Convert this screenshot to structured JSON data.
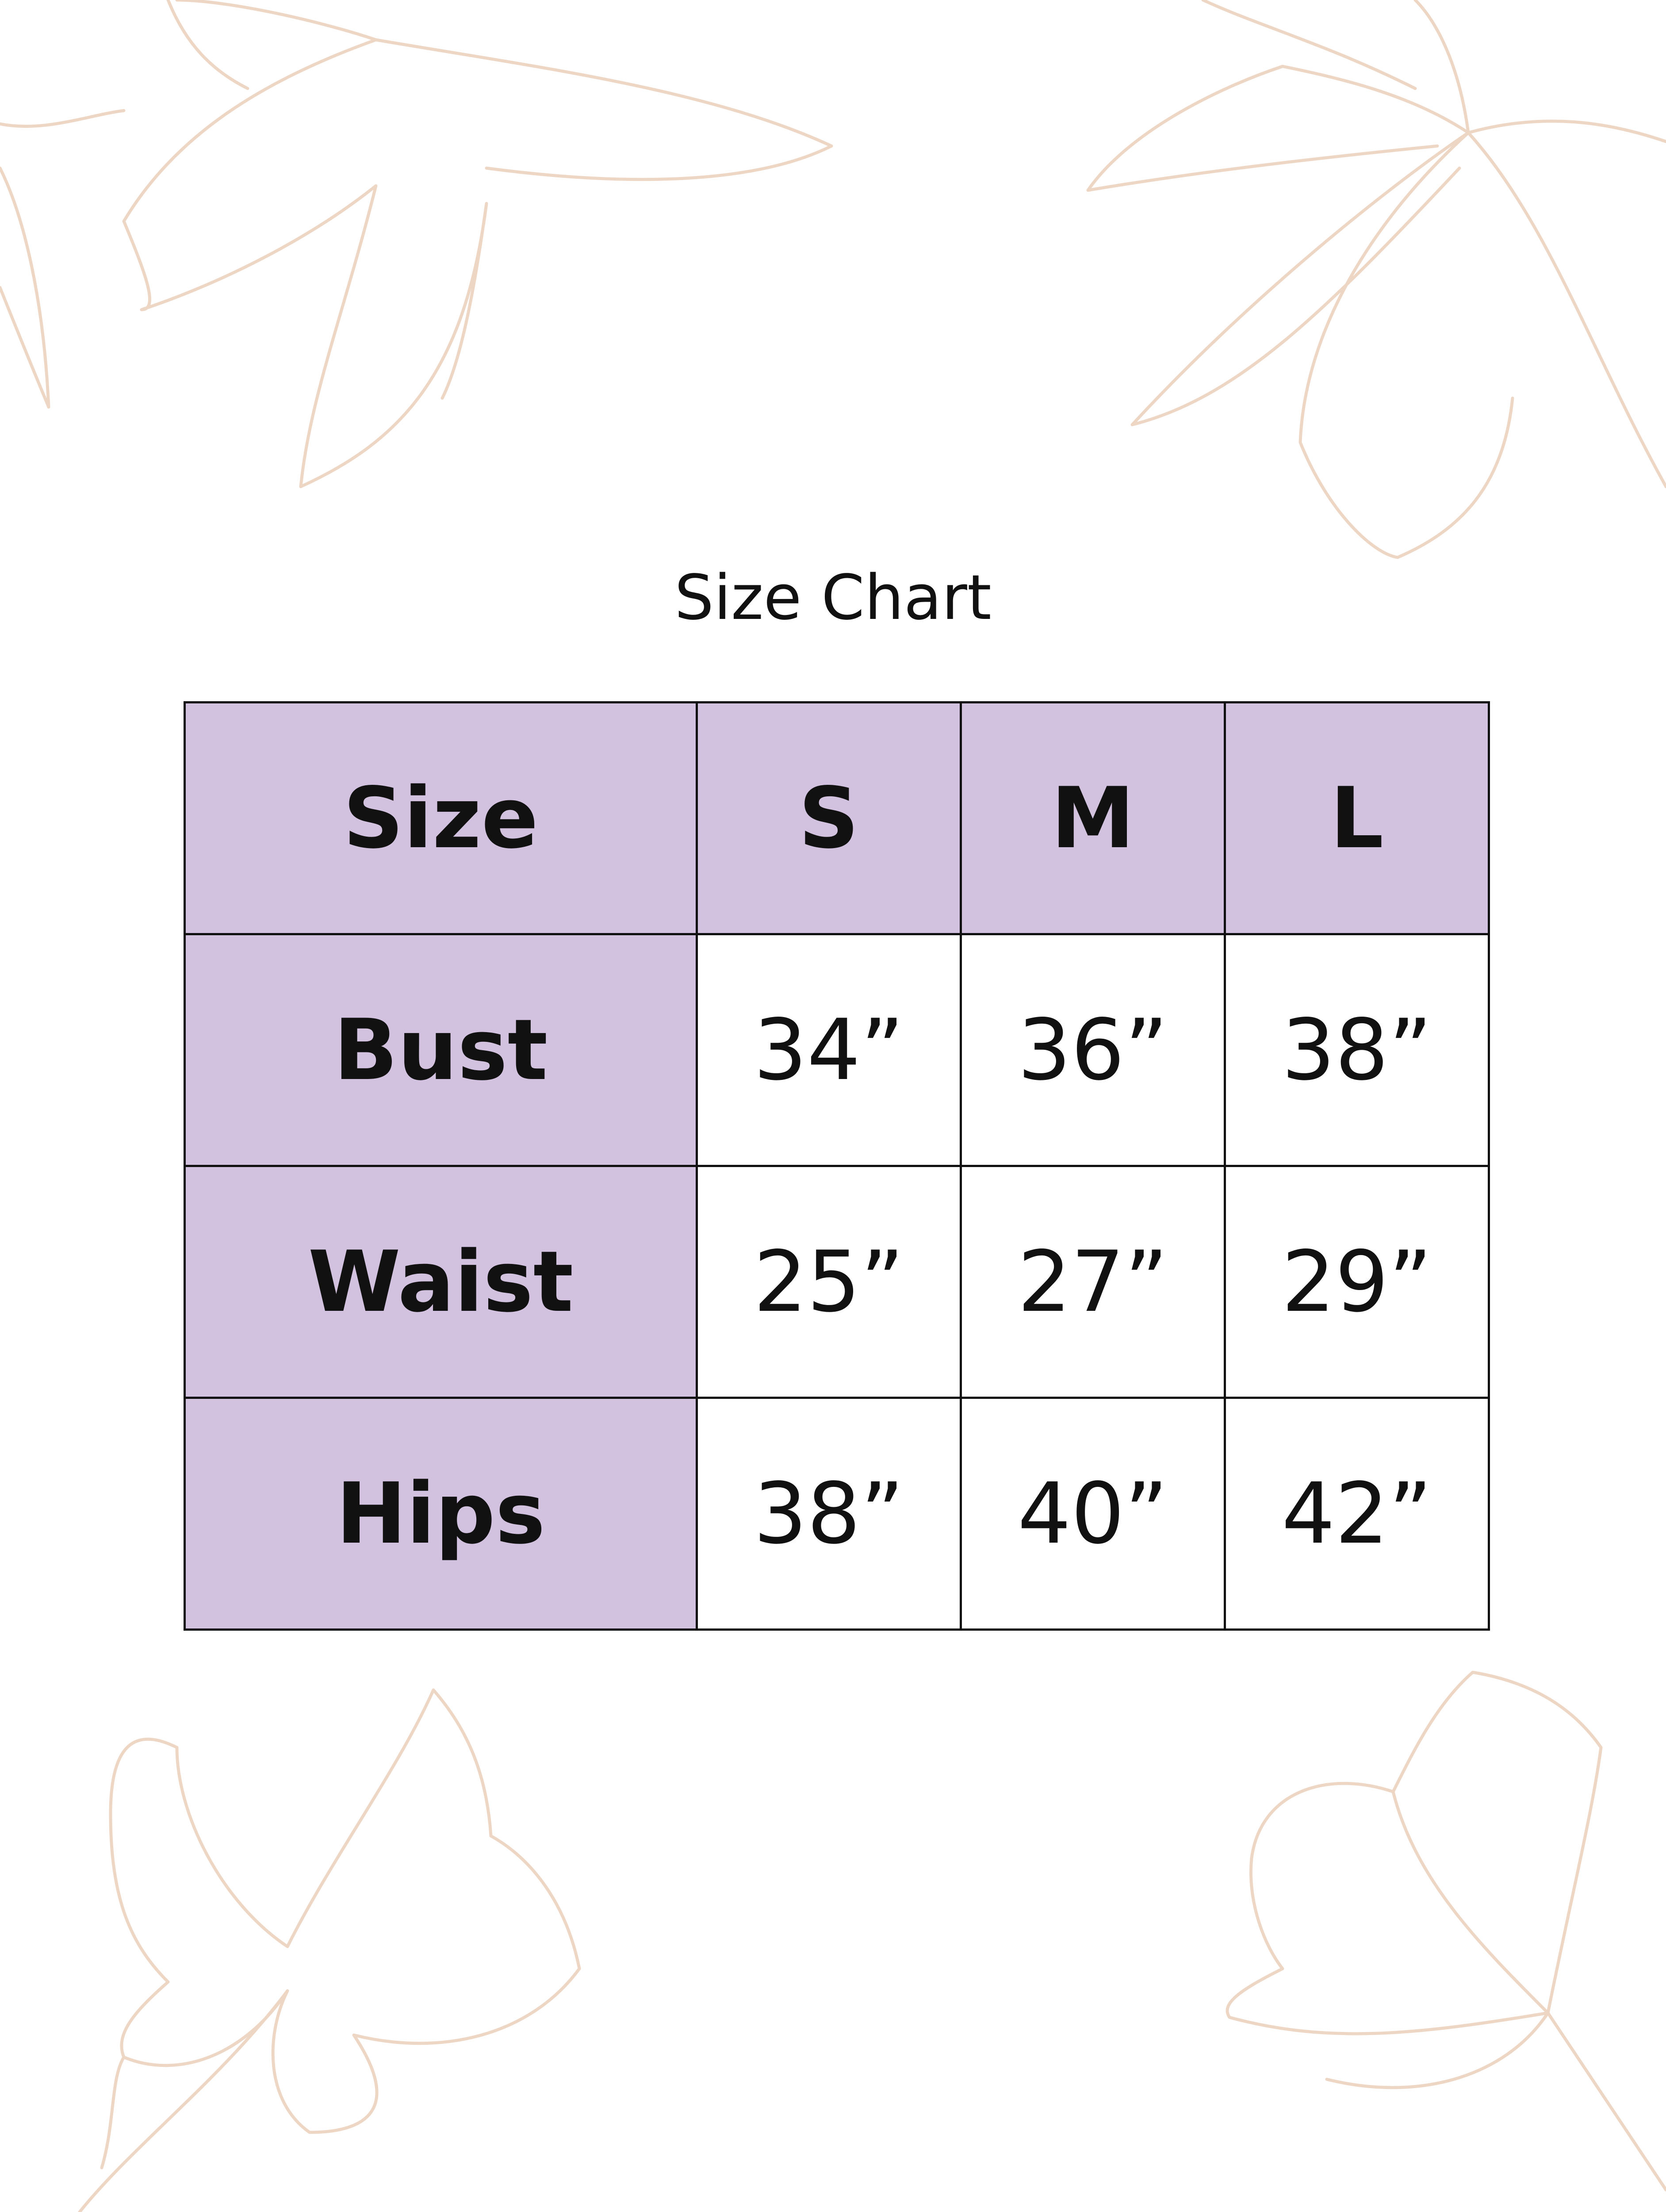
{
  "title": "Size Chart",
  "colors": {
    "header_fill": "#d2c1df",
    "border": "#111111",
    "flower_outline": "#eed6c5"
  },
  "table": {
    "header": [
      "Size",
      "S",
      "M",
      "L"
    ],
    "rows": [
      {
        "label": "Bust",
        "values": [
          "34”",
          "36”",
          "38”"
        ]
      },
      {
        "label": "Waist",
        "values": [
          "25”",
          "27”",
          "29”"
        ]
      },
      {
        "label": "Hips",
        "values": [
          "38”",
          "40”",
          "42”"
        ]
      }
    ]
  }
}
